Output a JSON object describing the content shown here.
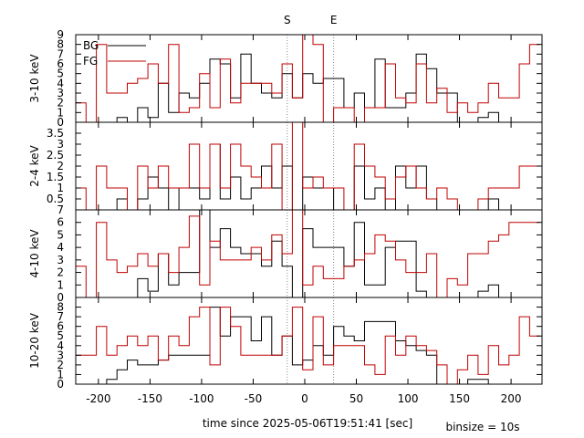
{
  "chart_data": {
    "type": "line",
    "style": "step",
    "markers": [
      {
        "label": "S",
        "x": -17
      },
      {
        "label": "E",
        "x": 28
      }
    ],
    "xlabel": "time since 2025-05-06T19:51:41 [sec]",
    "binsize_label": "binsize = 10s",
    "xlim": [
      -222,
      230
    ],
    "xticks": [
      -200,
      -150,
      -100,
      -50,
      0,
      50,
      100,
      150,
      200
    ],
    "bin_starts": [
      -222,
      -212,
      -202,
      -192,
      -182,
      -172,
      -162,
      -152,
      -142,
      -132,
      -122,
      -112,
      -102,
      -92,
      -82,
      -72,
      -62,
      -52,
      -42,
      -32,
      -22,
      -12,
      -2,
      8,
      18,
      28,
      38,
      48,
      58,
      68,
      78,
      88,
      98,
      108,
      118,
      128,
      138,
      148,
      158,
      168,
      178,
      188,
      198,
      208,
      218
    ],
    "legend": {
      "position": "top-left",
      "entries": [
        "BG",
        "FG"
      ]
    },
    "colors": {
      "BG": "#000000",
      "FG": "#c00000"
    },
    "panels": [
      {
        "ylabel": "3-10 keV",
        "ylim": [
          0,
          9
        ],
        "yticks": [
          0,
          1,
          2,
          3,
          4,
          5,
          6,
          7,
          8,
          9
        ],
        "series": [
          {
            "name": "BG",
            "values": [
              0,
              0,
              0,
              0,
              0.5,
              0,
              1.5,
              0.5,
              4,
              1,
              3,
              2.5,
              4,
              6.5,
              6,
              2.5,
              7,
              4,
              3,
              2.5,
              5,
              2.5,
              5,
              4,
              4.5,
              4.5,
              1.5,
              3,
              1.5,
              6.5,
              1.5,
              1.5,
              3,
              7,
              5.5,
              3,
              3,
              0,
              0,
              0.5,
              1,
              0,
              0,
              0,
              0
            ]
          },
          {
            "name": "FG",
            "values": [
              2,
              0,
              8,
              3,
              3,
              4,
              4.5,
              6,
              4,
              8,
              1,
              1.5,
              5,
              1.5,
              6.5,
              2,
              4,
              4,
              4,
              3,
              6,
              2.5,
              9,
              8,
              0,
              1.5,
              1.5,
              0,
              1.5,
              1.5,
              6,
              2.5,
              2,
              6,
              2,
              3.5,
              1,
              2,
              1,
              2,
              4,
              2.5,
              2.5,
              6,
              8
            ]
          }
        ]
      },
      {
        "ylabel": "2-4 keV",
        "ylim": [
          0,
          4
        ],
        "yticks": [
          0.5,
          1,
          1.5,
          2,
          2.5,
          3,
          3.5
        ],
        "series": [
          {
            "name": "BG",
            "values": [
              0,
              0,
              0,
              0,
              0.5,
              0,
              0.5,
              1.5,
              1,
              0,
              1,
              1,
              0.5,
              3,
              0.5,
              1.5,
              0.5,
              1,
              2,
              1,
              2,
              0,
              1.5,
              1,
              1,
              0,
              0,
              2,
              0.5,
              1,
              0,
              2,
              1,
              2,
              0.5,
              0,
              0,
              0,
              0,
              0,
              0.5,
              0,
              0,
              0,
              0
            ]
          },
          {
            "name": "FG",
            "values": [
              1,
              0,
              2,
              1,
              1,
              0,
              2,
              1,
              2,
              1,
              1,
              3,
              1,
              3,
              1,
              3,
              2,
              1.5,
              1,
              3,
              0,
              4,
              1,
              1.5,
              1,
              1,
              0,
              3,
              2,
              1.5,
              0.5,
              1.5,
              2,
              1,
              0.5,
              1,
              0.5,
              0,
              0,
              0.5,
              1,
              1,
              1,
              2,
              2
            ]
          }
        ]
      },
      {
        "ylabel": "4-10 keV",
        "ylim": [
          0,
          7
        ],
        "yticks": [
          0,
          1,
          2,
          3,
          4,
          5,
          6,
          7
        ],
        "series": [
          {
            "name": "BG",
            "values": [
              0,
              0,
              0,
              0,
              0,
              0,
              1.5,
              0.5,
              3.5,
              1,
              2,
              2,
              7,
              4,
              5.5,
              4,
              3.5,
              3.5,
              2.5,
              4.5,
              2.5,
              0,
              5.5,
              4,
              4,
              4,
              2.5,
              6,
              1,
              1,
              4,
              4.5,
              4.5,
              0.5,
              0,
              0,
              0,
              0,
              0,
              0.5,
              1,
              0,
              0,
              0,
              0
            ]
          },
          {
            "name": "FG",
            "values": [
              2.5,
              0,
              6,
              3,
              2,
              2.5,
              3.5,
              2.5,
              3.5,
              2,
              4,
              6.5,
              1,
              4.5,
              3,
              3,
              3,
              4,
              3,
              5,
              3.5,
              7,
              1,
              2.5,
              1.5,
              1.5,
              2.5,
              3,
              3.5,
              5,
              4.5,
              3,
              2,
              2,
              3.5,
              0,
              1.5,
              1,
              3.5,
              3.5,
              4.5,
              5,
              6,
              6,
              6
            ]
          }
        ]
      },
      {
        "ylabel": "10-20 keV",
        "ylim": [
          0,
          9
        ],
        "yticks": [
          0,
          1,
          2,
          3,
          4,
          5,
          6,
          7,
          8
        ],
        "series": [
          {
            "name": "BG",
            "values": [
              0,
              0,
              0,
              0.5,
              1.5,
              2.5,
              2,
              2,
              2.5,
              3,
              3,
              3,
              3,
              8,
              5,
              7,
              7,
              4.5,
              7,
              3,
              5,
              2,
              2.5,
              4,
              3,
              6,
              5,
              4.5,
              6.5,
              6.5,
              6.5,
              4.5,
              4,
              3.5,
              3,
              0,
              0,
              0,
              0.5,
              0.5,
              0,
              0,
              0,
              0,
              0
            ]
          },
          {
            "name": "FG",
            "values": [
              3,
              3,
              6,
              3,
              4,
              5,
              4,
              5,
              2.5,
              5,
              4,
              7,
              8,
              2,
              8,
              6,
              3,
              3,
              3,
              3,
              5,
              8,
              1.5,
              7,
              2,
              4,
              4,
              4,
              2,
              1,
              5,
              3,
              5,
              4,
              3.5,
              2,
              0,
              1.5,
              3,
              1,
              4,
              2,
              3,
              7,
              5
            ]
          }
        ]
      }
    ]
  }
}
